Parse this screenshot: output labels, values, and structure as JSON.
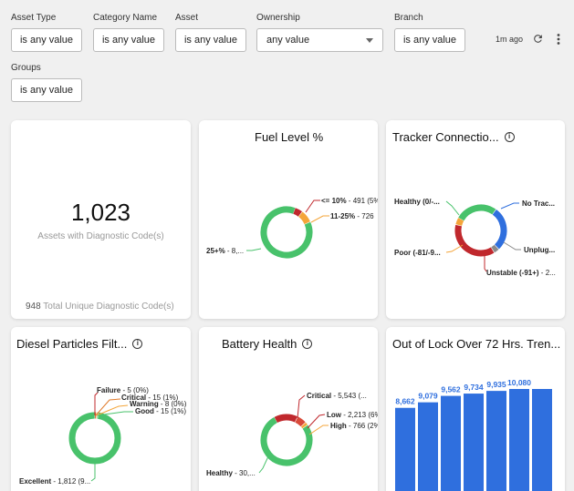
{
  "filters": {
    "asset_type": {
      "label": "Asset Type",
      "value": "is any value"
    },
    "category_name": {
      "label": "Category Name",
      "value": "is any value"
    },
    "asset": {
      "label": "Asset",
      "value": "is any value"
    },
    "ownership": {
      "label": "Ownership",
      "value": "any value"
    },
    "branch": {
      "label": "Branch",
      "value": "is any value"
    },
    "groups": {
      "label": "Groups",
      "value": "is any value"
    }
  },
  "header": {
    "last_updated": "1m ago",
    "refresh_icon": "refresh-icon",
    "more_icon": "more-vert-icon"
  },
  "kpi": {
    "value": "1,023",
    "caption": "Assets with Diagnostic Code(s)",
    "footer_value": "948",
    "footer_label": "Total Unique Diagnostic Code(s)"
  },
  "fuel": {
    "title": "Fuel Level %",
    "labels": [
      {
        "name": "<= 10%",
        "value": " - 491 (5%"
      },
      {
        "name": "11-25%",
        "value": " - 726"
      },
      {
        "name": "25+%",
        "value": " - 8,..."
      }
    ]
  },
  "tracker": {
    "title": "Tracker Connectio...",
    "labels": [
      {
        "name": "Healthy (0/-..."
      },
      {
        "name": "No Trac..."
      },
      {
        "name": "Poor (-81/-9..."
      },
      {
        "name": "Unplug..."
      },
      {
        "name": "Unstable (-91+)",
        "value": " - 2..."
      }
    ]
  },
  "diesel": {
    "title": "Diesel Particles Filt...",
    "labels": [
      {
        "name": "Failure",
        "value": " - 5 (0%)"
      },
      {
        "name": "Critical",
        "value": " - 15 (1%)"
      },
      {
        "name": "Warning",
        "value": " - 8 (0%)"
      },
      {
        "name": "Good",
        "value": " - 15 (1%)"
      },
      {
        "name": "Excellent",
        "value": " - 1,812 (9..."
      }
    ]
  },
  "battery": {
    "title": "Battery Health",
    "labels": [
      {
        "name": "Critical",
        "value": " - 5,543 (..."
      },
      {
        "name": "Low",
        "value": " - 2,213 (6%"
      },
      {
        "name": "High",
        "value": " - 766 (2%"
      },
      {
        "name": "Healthy",
        "value": " - 30,..."
      }
    ]
  },
  "lock": {
    "title": "Out of Lock Over 72 Hrs. Tren..."
  },
  "colors": {
    "accent": "#2f6fde",
    "healthy": "#48c26b",
    "critical": "#c0282d",
    "warning": "#f4a53a",
    "gray": "#8a8a8a"
  },
  "chart_data": [
    {
      "type": "pie",
      "title": "Fuel Level %",
      "categories": [
        "<= 10%",
        "11-25%",
        "25+%"
      ],
      "values": [
        5,
        8,
        87
      ]
    },
    {
      "type": "pie",
      "title": "Tracker Connectio...",
      "categories": [
        "Healthy (0/-...",
        "No Trac...",
        "Unplug...",
        "Unstable (-91+)",
        "Poor (-81/-9..."
      ],
      "values": [
        23,
        24,
        3,
        32,
        4
      ]
    },
    {
      "type": "pie",
      "title": "Diesel Particles Filt...",
      "categories": [
        "Failure",
        "Critical",
        "Warning",
        "Good",
        "Excellent"
      ],
      "values": [
        5,
        15,
        8,
        15,
        1812
      ]
    },
    {
      "type": "pie",
      "title": "Battery Health",
      "categories": [
        "Critical",
        "Low",
        "High",
        "Healthy"
      ],
      "values": [
        15,
        6,
        2,
        77
      ]
    },
    {
      "type": "bar",
      "title": "Out of Lock Over 72 Hrs. Tren...",
      "values": [
        8662,
        9079,
        9562,
        9734,
        9935,
        10080,
        10080
      ],
      "data_labels": [
        "8,662",
        "9,079",
        "9,562",
        "9,734",
        "9,935",
        "10,080",
        ""
      ]
    }
  ]
}
